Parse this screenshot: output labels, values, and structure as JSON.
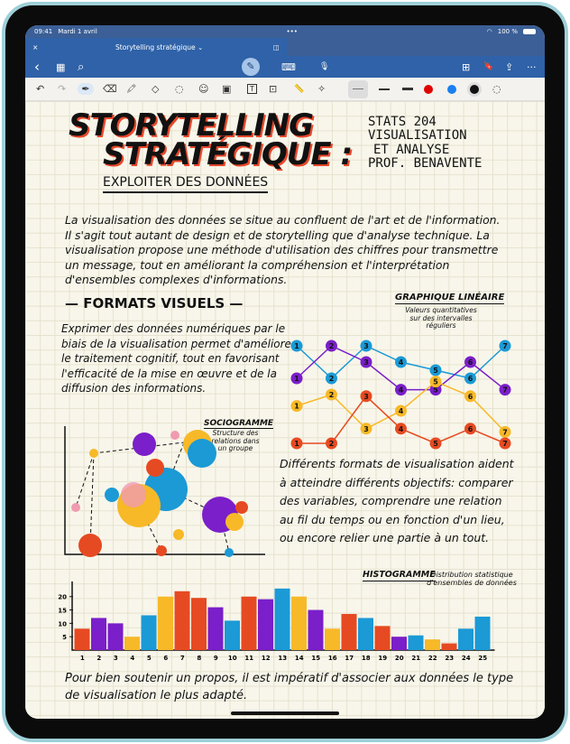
{
  "status": {
    "time": "09:41",
    "date": "Mardi 1 avril",
    "battery": "100 %"
  },
  "tab": {
    "close": "×",
    "title": "Storytelling stratégique ⌄",
    "split": "◫"
  },
  "nav": {
    "back": "‹",
    "grid": "▦",
    "search": "⌕",
    "pen_mode": "✎",
    "keyboard": "⌨",
    "mic": "🎙",
    "add_page": "⊞",
    "bookmark": "🔖",
    "share": "⇪",
    "more": "···"
  },
  "tools": {
    "undo": "↶",
    "redo": "↷",
    "pen": "✒",
    "eraser": "⌫",
    "highlighter": "🖍",
    "shapes": "◇",
    "lasso": "◌",
    "sticker": "☺",
    "image": "▣",
    "text": "T",
    "scan": "⊡",
    "ruler": "📏",
    "laser": "✧",
    "colors": [
      "#e00000",
      "#1a7ff0",
      "#111111"
    ]
  },
  "note": {
    "title1": "STORYTELLING",
    "title2": "STRATÉGIQUE :",
    "subtitle": "EXPLOITER DES DONNÉES",
    "course": [
      "STATS 204",
      "VISUALISATION",
      "ET ANALYSE",
      "PROF. BENAVENTE"
    ],
    "intro": "La visualisation des données se situe au confluent de l'art et de l'information. Il s'agit tout autant de design et de storytelling que d'analyse technique. La visualisation propose une méthode d'utilisation des chiffres pour transmettre un message, tout en améliorant la compréhension et l'interprétation d'ensembles complexes d'informations.",
    "formats_heading": "FORMATS VISUELS",
    "formats_text": "Exprimer des données numériques par le biais de la visualisation permet d'améliorer le traitement cognitif, tout en favorisant l'efficacité de la mise en œuvre et de la diffusion des informations.",
    "line_title": "GRAPHIQUE LINÉAIRE",
    "line_desc": "Valeurs quantitatives sur des intervalles réguliers",
    "socio_title": "SOCIOGRAMME",
    "socio_desc": "Structure des relations dans un groupe",
    "formats_text2": "Différents formats de visualisation aident à atteindre différents objectifs: comparer des variables, comprendre une relation au fil du temps ou en fonction d'un lieu, ou encore relier une partie à un tout.",
    "hist_title": "HISTOGRAMME",
    "hist_desc": "Distribution statistique d'ensembles de données",
    "conclusion": "Pour bien soutenir un propos, il est impératif d'associer aux données le type de visualisation le plus adapté."
  },
  "chart_data": [
    {
      "type": "line",
      "title": "GRAPHIQUE LINÉAIRE",
      "x": [
        1,
        2,
        3,
        4,
        5,
        6,
        7
      ],
      "series": [
        {
          "color": "#1b9ad6",
          "values": [
            7.5,
            5.5,
            7.5,
            6.5,
            6,
            5.5,
            7.5
          ]
        },
        {
          "color": "#7a1fc9",
          "values": [
            5.5,
            7.5,
            6.5,
            4.8,
            4.8,
            6.5,
            4.8
          ]
        },
        {
          "color": "#f7b928",
          "values": [
            3.8,
            4.5,
            2.4,
            3.5,
            5.3,
            4.4,
            2.2
          ]
        },
        {
          "color": "#e64a22",
          "values": [
            1.5,
            1.5,
            4.4,
            2.4,
            1.5,
            2.4,
            1.5
          ]
        }
      ]
    },
    {
      "type": "bar",
      "title": "HISTOGRAMME",
      "categories": [
        "1",
        "2",
        "3",
        "4",
        "5",
        "6",
        "7",
        "8",
        "9",
        "10",
        "11",
        "12",
        "13",
        "14",
        "15",
        "16",
        "17",
        "18",
        "19",
        "20",
        "21",
        "22",
        "23",
        "24",
        "25"
      ],
      "values": [
        8,
        12,
        10,
        5,
        13,
        20,
        22,
        19.5,
        16,
        11,
        20,
        19,
        23,
        20,
        15,
        8,
        13.5,
        12,
        9,
        5,
        5.5,
        4,
        2.5,
        8,
        12.5
      ],
      "colors": [
        "#e64a22",
        "#7a1fc9",
        "#7a1fc9",
        "#f7b928",
        "#1b9ad6",
        "#f7b928",
        "#e64a22",
        "#e64a22",
        "#7a1fc9",
        "#1b9ad6",
        "#e64a22",
        "#7a1fc9",
        "#1b9ad6",
        "#f7b928",
        "#7a1fc9",
        "#f7b928",
        "#e64a22",
        "#1b9ad6",
        "#e64a22",
        "#7a1fc9",
        "#1b9ad6",
        "#f7b928",
        "#e64a22",
        "#1b9ad6",
        "#1b9ad6"
      ],
      "yticks": [
        "5",
        "10",
        "15",
        "20"
      ],
      "ylim": [
        0,
        25
      ]
    }
  ]
}
